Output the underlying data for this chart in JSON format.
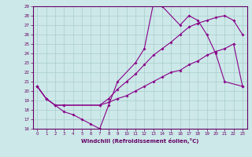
{
  "xlabel": "Windchill (Refroidissement éolien,°C)",
  "xlim": [
    -0.5,
    23.5
  ],
  "ylim": [
    16,
    29
  ],
  "yticks": [
    16,
    17,
    18,
    19,
    20,
    21,
    22,
    23,
    24,
    25,
    26,
    27,
    28,
    29
  ],
  "xticks": [
    0,
    1,
    2,
    3,
    4,
    5,
    6,
    7,
    8,
    9,
    10,
    11,
    12,
    13,
    14,
    15,
    16,
    17,
    18,
    19,
    20,
    21,
    22,
    23
  ],
  "background_color": "#cce8e8",
  "grid_color": "#aacece",
  "line_color": "#880088",
  "lines": [
    {
      "x": [
        0,
        1,
        2,
        3,
        4,
        5,
        6,
        7,
        8,
        9,
        11,
        12,
        13,
        14,
        16,
        17,
        18,
        19,
        20,
        21,
        23
      ],
      "y": [
        20.5,
        19.2,
        18.5,
        17.8,
        17.5,
        17.0,
        16.5,
        16.0,
        18.5,
        21.0,
        23.0,
        24.5,
        29.2,
        29.0,
        27.0,
        28.0,
        27.5,
        26.0,
        24.0,
        21.0,
        20.5
      ]
    },
    {
      "x": [
        0,
        1,
        2,
        3,
        7,
        8,
        9,
        10,
        11,
        12,
        13,
        14,
        15,
        16,
        17,
        18,
        19,
        20,
        21,
        22,
        23
      ],
      "y": [
        20.5,
        19.2,
        18.5,
        18.5,
        18.5,
        19.2,
        20.2,
        21.0,
        21.8,
        22.8,
        23.8,
        24.5,
        25.2,
        26.0,
        26.8,
        27.2,
        27.5,
        27.8,
        28.0,
        27.5,
        26.0
      ]
    },
    {
      "x": [
        0,
        1,
        2,
        3,
        7,
        8,
        9,
        10,
        11,
        12,
        13,
        14,
        15,
        16,
        17,
        18,
        19,
        20,
        21,
        22,
        23
      ],
      "y": [
        20.5,
        19.2,
        18.5,
        18.5,
        18.5,
        18.8,
        19.2,
        19.5,
        20.0,
        20.5,
        21.0,
        21.5,
        22.0,
        22.2,
        22.8,
        23.2,
        23.8,
        24.2,
        24.5,
        25.0,
        20.5
      ]
    }
  ]
}
